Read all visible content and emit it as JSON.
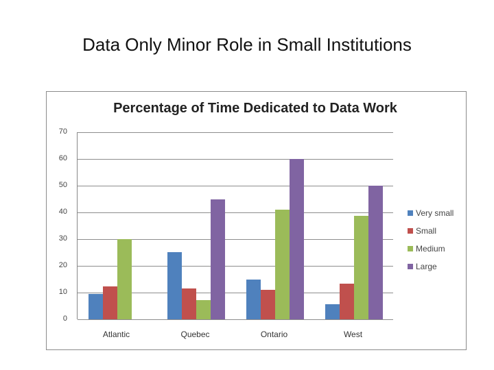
{
  "slide": {
    "title": "Data Only Minor Role in Small Institutions"
  },
  "colors": {
    "very_small": "#4f81bd",
    "small": "#c0504d",
    "medium": "#9bbb59",
    "large": "#8064a2"
  },
  "chart_data": {
    "type": "bar",
    "title": "Percentage of Time Dedicated to Data Work",
    "xlabel": "",
    "ylabel": "",
    "ylim": [
      0,
      70
    ],
    "yticks": [
      0,
      10,
      20,
      30,
      40,
      50,
      60,
      70
    ],
    "grid": true,
    "legend_position": "right",
    "categories": [
      "Atlantic",
      "Quebec",
      "Ontario",
      "West"
    ],
    "series": [
      {
        "name": "Very small",
        "color": "#4f81bd",
        "values": [
          9.6,
          25.1,
          14.9,
          5.6
        ]
      },
      {
        "name": "Small",
        "color": "#c0504d",
        "values": [
          12.3,
          11.5,
          11.0,
          13.3
        ]
      },
      {
        "name": "Medium",
        "color": "#9bbb59",
        "values": [
          30,
          7.2,
          41,
          38.7
        ]
      },
      {
        "name": "Large",
        "color": "#8064a2",
        "values": [
          0,
          45,
          60,
          50
        ]
      }
    ]
  }
}
